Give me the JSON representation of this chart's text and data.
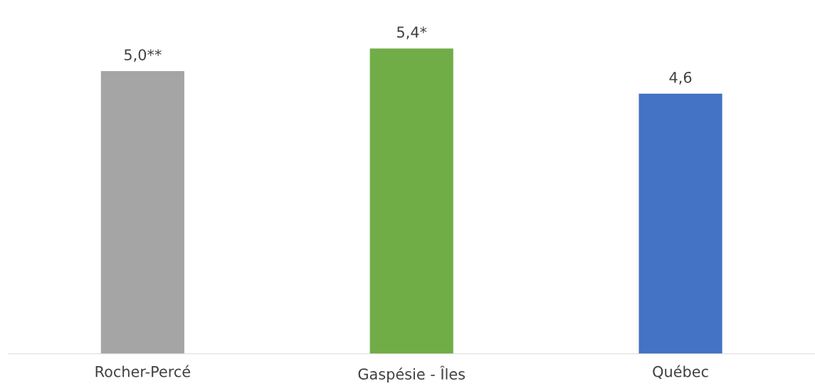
{
  "chart_data": {
    "type": "bar",
    "categories": [
      "Rocher-Percé",
      "Gaspésie - Îles",
      "Québec"
    ],
    "values": [
      5.0,
      5.4,
      4.6
    ],
    "colors": [
      "#a5a5a5",
      "#70ad47",
      "#4472c4"
    ],
    "value_labels": [
      "5,0**",
      "5,4*",
      "4,6"
    ],
    "tick_labels": "x",
    "grid": false,
    "legend": false
  }
}
